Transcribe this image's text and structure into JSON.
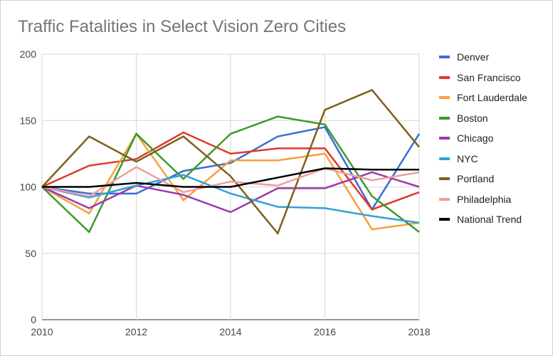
{
  "chart_data": {
    "type": "line",
    "title": "Traffic Fatalities in Select Vision Zero Cities",
    "xlabel": "",
    "ylabel": "",
    "x": [
      2010,
      2011,
      2012,
      2013,
      2014,
      2015,
      2016,
      2017,
      2018
    ],
    "x_ticks": [
      "2010",
      "2012",
      "2014",
      "2016",
      "2018"
    ],
    "y_ticks": [
      "0",
      "50",
      "100",
      "150",
      "200"
    ],
    "xlim": [
      2010,
      2018
    ],
    "ylim": [
      0,
      200
    ],
    "grid": true,
    "legend_position": "right",
    "series": [
      {
        "name": "Denver",
        "color": "#3b6ed6",
        "values": [
          100,
          95,
          95,
          112,
          118,
          138,
          145,
          83,
          140
        ]
      },
      {
        "name": "San Francisco",
        "color": "#e0392b",
        "values": [
          100,
          116,
          121,
          141,
          125,
          129,
          129,
          83,
          96
        ]
      },
      {
        "name": "Fort Lauderdale",
        "color": "#f6a03a",
        "values": [
          100,
          80,
          140,
          90,
          120,
          120,
          125,
          68,
          73
        ]
      },
      {
        "name": "Boston",
        "color": "#3a9a2a",
        "values": [
          100,
          66,
          140,
          106,
          140,
          153,
          147,
          93,
          66
        ]
      },
      {
        "name": "Chicago",
        "color": "#9c3aa8",
        "values": [
          100,
          84,
          101,
          94,
          81,
          99,
          99,
          111,
          100
        ]
      },
      {
        "name": "NYC",
        "color": "#2ea3d6",
        "values": [
          100,
          92,
          101,
          109,
          95,
          85,
          84,
          78,
          73
        ]
      },
      {
        "name": "Portland",
        "color": "#7e5f1b",
        "values": [
          100,
          138,
          119,
          138,
          108,
          65,
          158,
          173,
          130
        ]
      },
      {
        "name": "Philadelphia",
        "color": "#ee9e9e",
        "values": [
          100,
          93,
          115,
          96,
          104,
          101,
          114,
          105,
          111
        ]
      },
      {
        "name": "National Trend",
        "color": "#000000",
        "values": [
          100,
          100,
          103,
          100,
          100,
          107,
          114,
          113,
          113
        ]
      }
    ]
  }
}
